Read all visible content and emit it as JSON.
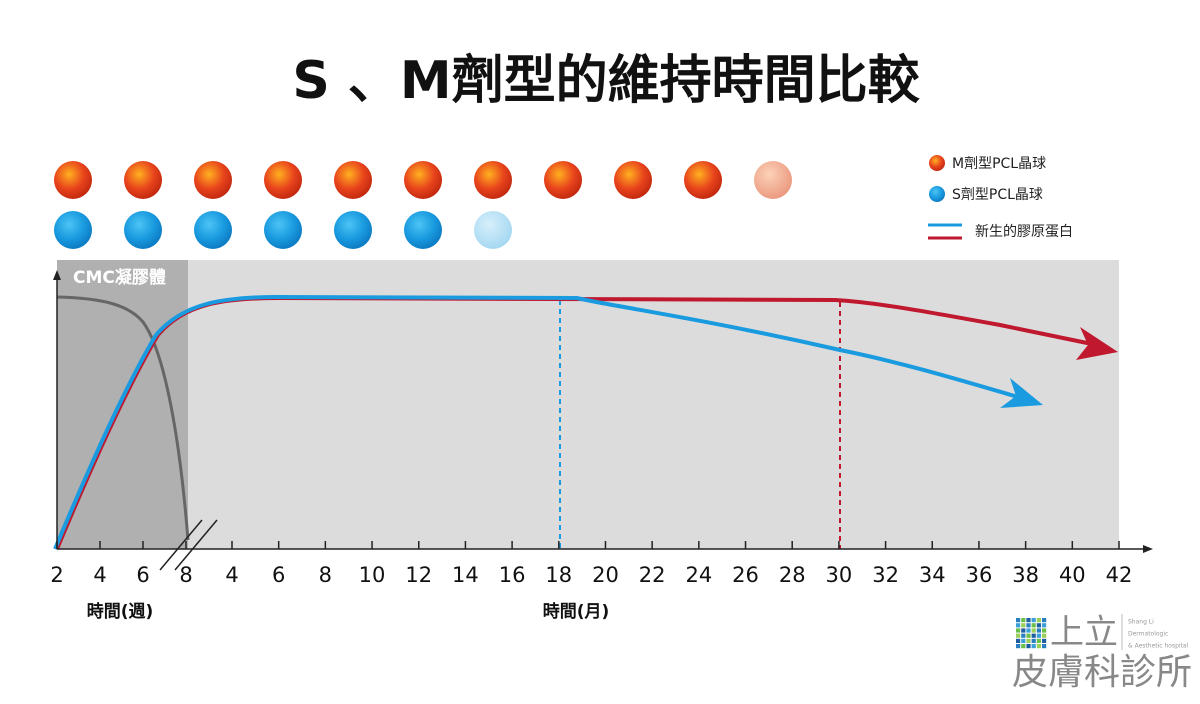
{
  "title": "S 、M劑型的維持時間比較",
  "legend": {
    "m_spheres": "M劑型PCL晶球",
    "s_spheres": "S劑型PCL晶球",
    "collagen": "新生的膠原蛋白"
  },
  "region_label": "CMC凝膠體",
  "x_axis": {
    "week_ticks": [
      2,
      4,
      6,
      8
    ],
    "week_label": "時間(週)",
    "month_ticks": [
      4,
      6,
      8,
      10,
      12,
      14,
      16,
      18,
      20,
      22,
      24,
      26,
      28,
      30,
      32,
      34,
      36,
      38,
      40,
      42
    ],
    "month_label": "時間(月)"
  },
  "logo": {
    "name": "上立",
    "subtitle": "皮膚科診所",
    "english": [
      "Shang Li",
      "Dermatologic",
      "& Aesthetic hospital"
    ]
  }
}
